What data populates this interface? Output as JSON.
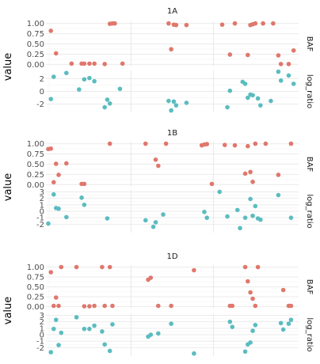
{
  "chart_data": {
    "type": "scatter",
    "ylabel": "value",
    "colors": {
      "BAF": "#e0776c",
      "log_ratio": "#5bbcbf",
      "grid_major": "#ebebeb",
      "grid_minor": "#f5f5f5"
    },
    "rows": [
      {
        "name": "BAF",
        "ticks": [
          "0.00",
          "0.25",
          "0.50",
          "0.75",
          "1.00"
        ],
        "tick_values": [
          0,
          0.25,
          0.5,
          0.75,
          1
        ],
        "ylim": [
          -0.05,
          1.05
        ]
      },
      {
        "name": "log_ratio",
        "ticks": [
          "-2",
          "0",
          "2"
        ],
        "tick_values": [
          -2,
          0,
          2
        ],
        "ylim": [
          -3.3,
          3.3
        ]
      }
    ],
    "xlim": [
      0,
      100
    ],
    "x_breaks": [
      33.7,
      66.3
    ],
    "panels": [
      {
        "title": "1A",
        "log_ratio_ticks": [
          "-2",
          "0",
          "2"
        ],
        "log_ratio_tick_values": [
          -2,
          0,
          2
        ],
        "BAF": [
          [
            2.1,
            0.82
          ],
          [
            4.3,
            0.27
          ],
          [
            10.9,
            0.02
          ],
          [
            15.2,
            0.02
          ],
          [
            16.3,
            0.02
          ],
          [
            18.5,
            0.02
          ],
          [
            20.6,
            0.02
          ],
          [
            25,
            0.01
          ],
          [
            27.2,
            0.99
          ],
          [
            28.3,
            1.0
          ],
          [
            29.3,
            1.0
          ],
          [
            32.6,
            0.02
          ],
          [
            52.2,
            1.0
          ],
          [
            53.3,
            0.37
          ],
          [
            54.4,
            0.97
          ],
          [
            55.4,
            0.96
          ],
          [
            59.8,
            0.96
          ],
          [
            75,
            0.97
          ],
          [
            78.3,
            0.24
          ],
          [
            80.4,
            1.0
          ],
          [
            85.9,
            0.23
          ],
          [
            87,
            0.96
          ],
          [
            88,
            0.98
          ],
          [
            89.1,
            1.0
          ],
          [
            92.4,
            1.0
          ],
          [
            96.7,
            1.0
          ],
          [
            98.9,
            0.22
          ],
          [
            100,
            0.01
          ],
          [
            103.3,
            0.01
          ],
          [
            105.4,
            0.34
          ]
        ],
        "log_ratio": [
          [
            2.1,
            -1.2
          ],
          [
            3.3,
            2.3
          ],
          [
            8.7,
            2.9
          ],
          [
            14.1,
            0.3
          ],
          [
            16.3,
            1.9
          ],
          [
            18.5,
            2.1
          ],
          [
            20.6,
            1.6
          ],
          [
            25,
            -2.5
          ],
          [
            26.1,
            -1.3
          ],
          [
            27.2,
            -1.9
          ],
          [
            31.5,
            0.4
          ],
          [
            52.2,
            -1.5
          ],
          [
            53.3,
            -3.0
          ],
          [
            54.4,
            -1.6
          ],
          [
            55.4,
            -2.2
          ],
          [
            59.8,
            -1.8
          ],
          [
            77.2,
            -2.5
          ],
          [
            78.3,
            0.1
          ],
          [
            83.7,
            1.5
          ],
          [
            84.8,
            1.2
          ],
          [
            85.9,
            -1.0
          ],
          [
            87,
            -0.5
          ],
          [
            88,
            -0.6
          ],
          [
            90.2,
            -1.1
          ],
          [
            91.3,
            -2.2
          ],
          [
            95.7,
            -1.5
          ],
          [
            98.9,
            3.1
          ],
          [
            100,
            1.7
          ],
          [
            103.3,
            2.5
          ],
          [
            105.4,
            1.2
          ]
        ]
      },
      {
        "title": "1B",
        "log_ratio_ticks": [
          "-2",
          "-1",
          "0",
          "1",
          "2",
          "3"
        ],
        "log_ratio_tick_values": [
          -2,
          -1,
          0,
          1,
          2,
          3
        ],
        "BAF": [
          [
            1,
            0.87
          ],
          [
            2.1,
            0.88
          ],
          [
            3.3,
            0.06
          ],
          [
            4.3,
            0.51
          ],
          [
            5.4,
            0.24
          ],
          [
            8.7,
            0.52
          ],
          [
            15.2,
            0.02
          ],
          [
            16.3,
            0.02
          ],
          [
            27.2,
            1.0
          ],
          [
            42.4,
            1.0
          ],
          [
            46.7,
            0.61
          ],
          [
            47.8,
            0.46
          ],
          [
            51.1,
            1.0
          ],
          [
            66.3,
            0.96
          ],
          [
            67.4,
            0.98
          ],
          [
            68.5,
            0.99
          ],
          [
            70.6,
            0.02
          ],
          [
            76.1,
            0.97
          ],
          [
            80.4,
            0.96
          ],
          [
            84.8,
            0.27
          ],
          [
            85.9,
            0.94
          ],
          [
            87,
            0.31
          ],
          [
            88,
            0.07
          ],
          [
            89.1,
            1.0
          ],
          [
            93.5,
            1.0
          ],
          [
            98.9,
            0.24
          ],
          [
            104.3,
            1.0
          ]
        ],
        "log_ratio": [
          [
            1,
            -1.9
          ],
          [
            3.3,
            2.6
          ],
          [
            4.3,
            0.5
          ],
          [
            5.4,
            0.4
          ],
          [
            8.7,
            -0.9
          ],
          [
            15.2,
            2.1
          ],
          [
            16.3,
            1.0
          ],
          [
            26.1,
            -1.1
          ],
          [
            42.4,
            -1.4
          ],
          [
            45.7,
            -2.4
          ],
          [
            46.7,
            -1.7
          ],
          [
            49.9,
            -0.5
          ],
          [
            67.4,
            -0.1
          ],
          [
            68.5,
            -1.0
          ],
          [
            73.9,
            3.0
          ],
          [
            77.2,
            -0.8
          ],
          [
            81.5,
            0.2
          ],
          [
            82.6,
            -2.6
          ],
          [
            84.8,
            -1.0
          ],
          [
            87,
            1.9
          ],
          [
            88,
            -0.7
          ],
          [
            89.1,
            0.8
          ],
          [
            90.2,
            -1.1
          ],
          [
            91.3,
            -1.3
          ],
          [
            98.9,
            2.5
          ],
          [
            104.3,
            -1.0
          ]
        ]
      },
      {
        "title": "1D",
        "log_ratio_ticks": [
          "-2",
          "-1",
          "0",
          "1",
          "2",
          "3"
        ],
        "log_ratio_tick_values": [
          -2,
          -1,
          0,
          1,
          2,
          3
        ],
        "BAF": [
          [
            2.1,
            0.87
          ],
          [
            3.3,
            0.02
          ],
          [
            4.3,
            0.23
          ],
          [
            5.4,
            0.02
          ],
          [
            6.5,
            1.0
          ],
          [
            13,
            1.0
          ],
          [
            16.3,
            0.01
          ],
          [
            18.5,
            0.01
          ],
          [
            20.6,
            0.02
          ],
          [
            23.9,
            1.0
          ],
          [
            25,
            0.02
          ],
          [
            27.2,
            1.0
          ],
          [
            28.3,
            0.02
          ],
          [
            43.5,
            0.68
          ],
          [
            44.6,
            0.73
          ],
          [
            47.8,
            0.02
          ],
          [
            53.3,
            0.02
          ],
          [
            63,
            0.92
          ],
          [
            78.3,
            0.02
          ],
          [
            79.3,
            0.02
          ],
          [
            84.8,
            1.0
          ],
          [
            85.9,
            0.64
          ],
          [
            87,
            0.36
          ],
          [
            88,
            0.2
          ],
          [
            89.1,
            0.02
          ],
          [
            90.2,
            1.0
          ],
          [
            101,
            0.42
          ],
          [
            103.3,
            0.02
          ],
          [
            104.3,
            0.02
          ]
        ],
        "log_ratio": [
          [
            2.1,
            -2.7
          ],
          [
            3.3,
            0.9
          ],
          [
            4.3,
            2.3
          ],
          [
            5.4,
            -1.6
          ],
          [
            6.5,
            0.3
          ],
          [
            13,
            2.7
          ],
          [
            16.3,
            0.9
          ],
          [
            18.5,
            0.9
          ],
          [
            20.6,
            1.4
          ],
          [
            23.9,
            0.5
          ],
          [
            25,
            -1.5
          ],
          [
            27.2,
            -2.5
          ],
          [
            28.3,
            1.6
          ],
          [
            43.5,
            -0.3
          ],
          [
            44.6,
            0.0
          ],
          [
            47.8,
            0.2
          ],
          [
            53.3,
            1.7
          ],
          [
            63,
            -2.9
          ],
          [
            78.3,
            2.0
          ],
          [
            79.3,
            1.2
          ],
          [
            84.8,
            -2.6
          ],
          [
            85.9,
            -1.5
          ],
          [
            87,
            -1.2
          ],
          [
            88,
            0.6
          ],
          [
            89.1,
            1.5
          ],
          [
            100,
            1.8
          ],
          [
            101,
            0.8
          ],
          [
            103.3,
            1.7
          ],
          [
            104.3,
            2.3
          ]
        ]
      }
    ]
  }
}
